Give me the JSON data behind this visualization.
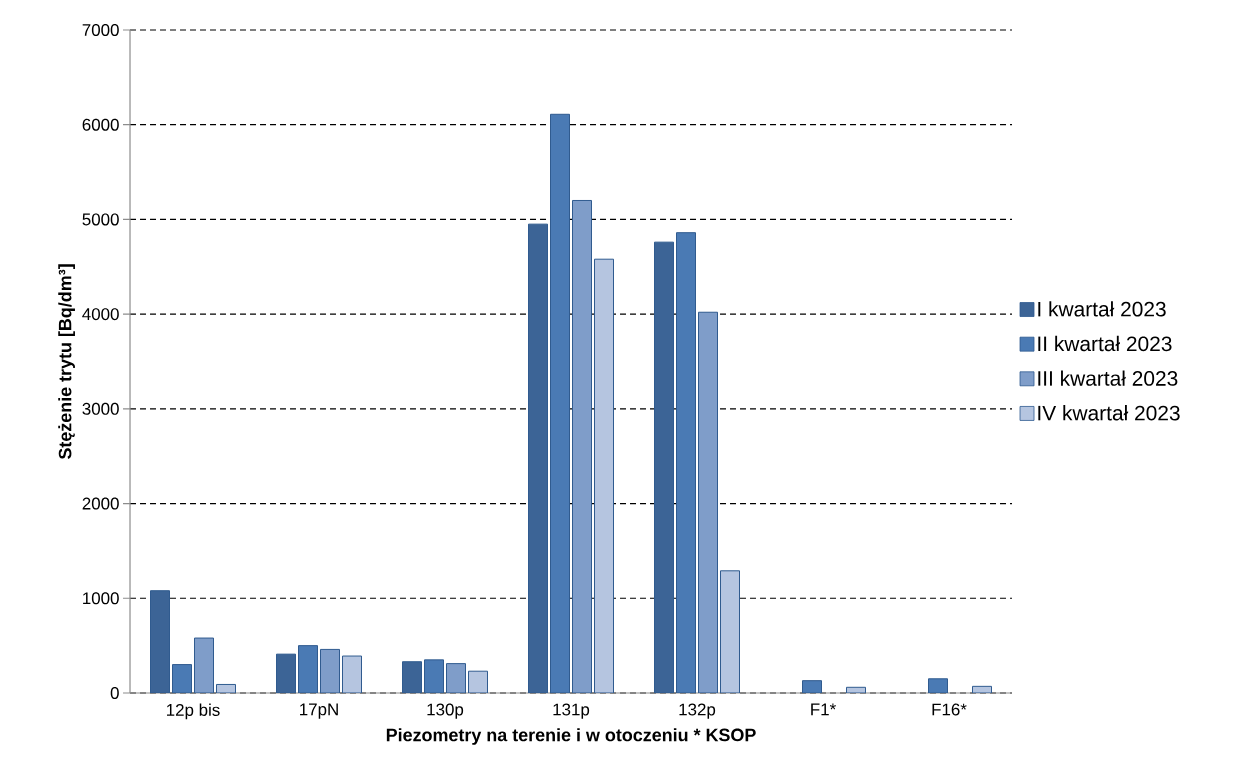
{
  "chart_data": {
    "type": "bar",
    "xlabel": "Piezometry na terenie i w otoczeniu * KSOP",
    "ylabel": "Stężenie trytu [Bq/dm³]",
    "categories": [
      "12p bis",
      "17pN",
      "130p",
      "131p",
      "132p",
      "F1*",
      "F16*"
    ],
    "series": [
      {
        "name": "I kwartał 2023",
        "color": "#3c6496",
        "values": [
          1080,
          410,
          330,
          4950,
          4760,
          null,
          null
        ]
      },
      {
        "name": "II kwartał 2023",
        "color": "#4a7ab4",
        "values": [
          300,
          500,
          350,
          6110,
          4860,
          130,
          150
        ]
      },
      {
        "name": "III kwartał 2023",
        "color": "#7f9dc9",
        "values": [
          580,
          460,
          310,
          5200,
          4020,
          null,
          null
        ]
      },
      {
        "name": "IV kwartał 2023",
        "color": "#b5c5e0",
        "values": [
          90,
          390,
          230,
          4580,
          1290,
          60,
          70
        ]
      }
    ],
    "ylim": [
      0,
      7000
    ],
    "yticks": [
      0,
      1000,
      2000,
      3000,
      4000,
      5000,
      6000,
      7000
    ],
    "grid": "y",
    "line_style": "dashed",
    "legend": "right"
  }
}
